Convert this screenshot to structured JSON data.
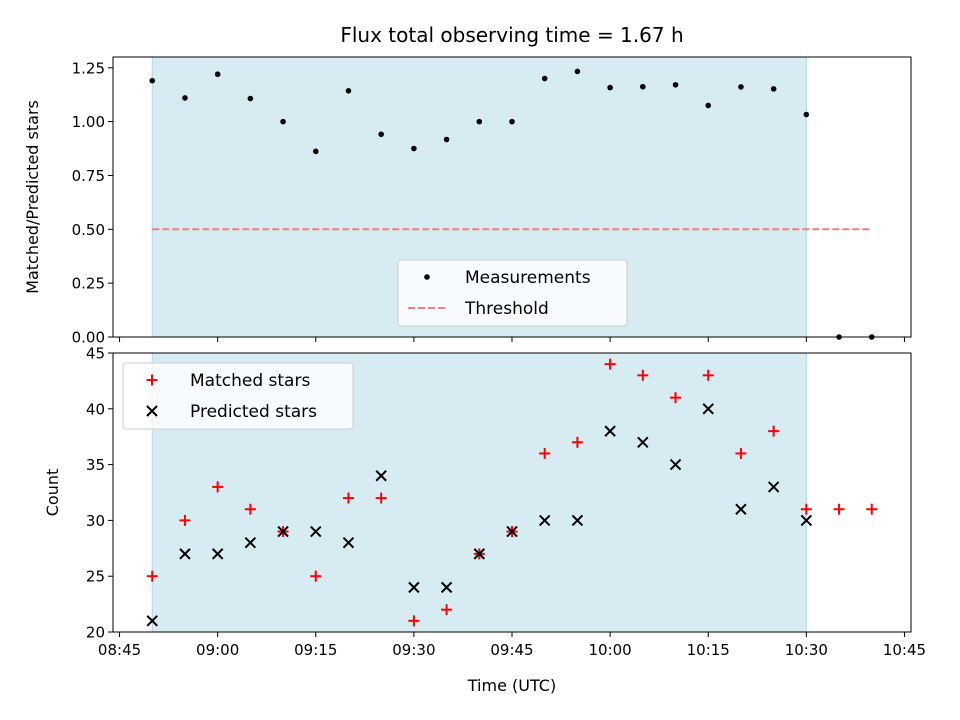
{
  "chart_data": [
    {
      "type": "scatter",
      "title": "Flux total observing time = 1.67 h",
      "xlabel": "",
      "ylabel": "Matched/Predicted stars",
      "ylim": [
        0,
        1.3
      ],
      "yticks": [
        "0.00",
        "0.25",
        "0.50",
        "0.75",
        "1.00",
        "1.25"
      ],
      "xlim_minutes": [
        -6,
        116
      ],
      "shaded_span": [
        "08:50",
        "10:30"
      ],
      "shade_color": "#add8e6",
      "series": [
        {
          "name": "Measurements",
          "marker": "dot",
          "color": "#000000",
          "x": [
            "08:50",
            "08:55",
            "09:00",
            "09:05",
            "09:10",
            "09:15",
            "09:20",
            "09:25",
            "09:30",
            "09:35",
            "09:40",
            "09:45",
            "09:50",
            "09:55",
            "10:00",
            "10:05",
            "10:10",
            "10:15",
            "10:20",
            "10:25",
            "10:30",
            "10:35",
            "10:40"
          ],
          "values": [
            1.19,
            1.11,
            1.22,
            1.107,
            1.0,
            0.862,
            1.143,
            0.941,
            0.875,
            0.917,
            1.0,
            1.0,
            1.2,
            1.233,
            1.158,
            1.162,
            1.171,
            1.075,
            1.161,
            1.152,
            1.033,
            0.0,
            0.0
          ]
        },
        {
          "name": "Threshold",
          "style": "dashed",
          "color": "#f08080",
          "x": [
            "08:50",
            "10:40"
          ],
          "values": [
            0.5,
            0.5
          ]
        }
      ],
      "legend_position": "lower-center",
      "grid": false
    },
    {
      "type": "scatter",
      "xlabel": "Time (UTC)",
      "ylabel": "Count",
      "ylim": [
        20,
        45
      ],
      "yticks": [
        "20",
        "25",
        "30",
        "35",
        "40",
        "45"
      ],
      "xticks": [
        "08:45",
        "09:00",
        "09:15",
        "09:30",
        "09:45",
        "10:00",
        "10:15",
        "10:30",
        "10:45"
      ],
      "xlim_minutes": [
        -6,
        116
      ],
      "shaded_span": [
        "08:50",
        "10:30"
      ],
      "shade_color": "#add8e6",
      "series": [
        {
          "name": "Matched stars",
          "marker": "plus",
          "color": "#ff0000",
          "x": [
            "08:50",
            "08:55",
            "09:00",
            "09:05",
            "09:10",
            "09:15",
            "09:20",
            "09:25",
            "09:30",
            "09:35",
            "09:40",
            "09:45",
            "09:50",
            "09:55",
            "10:00",
            "10:05",
            "10:10",
            "10:15",
            "10:20",
            "10:25",
            "10:30",
            "10:35",
            "10:40"
          ],
          "values": [
            25,
            30,
            33,
            31,
            29,
            25,
            32,
            32,
            21,
            22,
            27,
            29,
            36,
            37,
            44,
            43,
            41,
            43,
            36,
            38,
            31,
            31,
            31
          ]
        },
        {
          "name": "Predicted stars",
          "marker": "x",
          "color": "#000000",
          "x": [
            "08:50",
            "08:55",
            "09:00",
            "09:05",
            "09:10",
            "09:15",
            "09:20",
            "09:25",
            "09:30",
            "09:35",
            "09:40",
            "09:45",
            "09:50",
            "09:55",
            "10:00",
            "10:05",
            "10:10",
            "10:15",
            "10:20",
            "10:25",
            "10:30"
          ],
          "values": [
            21,
            27,
            27,
            28,
            29,
            29,
            28,
            34,
            24,
            24,
            27,
            29,
            30,
            30,
            38,
            37,
            35,
            40,
            31,
            33,
            30
          ]
        }
      ],
      "legend_position": "upper-left",
      "grid": false
    }
  ]
}
